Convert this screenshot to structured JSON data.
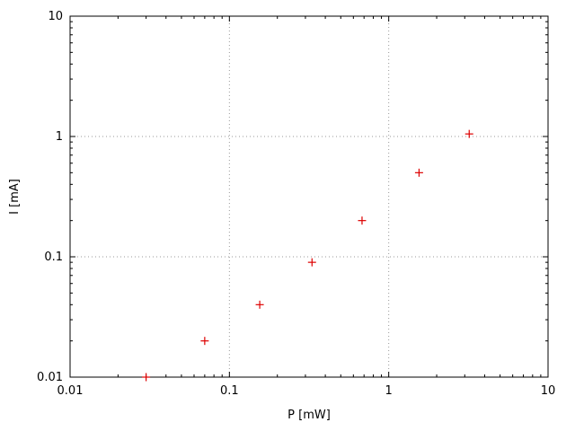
{
  "chart_data": {
    "type": "scatter",
    "title": "",
    "xlabel": "P [mW]",
    "ylabel": "I [mA]",
    "xscale": "log",
    "yscale": "log",
    "xlim": [
      0.01,
      10
    ],
    "ylim": [
      0.01,
      10
    ],
    "grid": true,
    "legend": "none",
    "marker": "plus",
    "x_ticks": [
      {
        "v": 0.01,
        "label": "0.01"
      },
      {
        "v": 0.1,
        "label": "0.1"
      },
      {
        "v": 1,
        "label": "1"
      },
      {
        "v": 10,
        "label": "10"
      }
    ],
    "y_ticks": [
      {
        "v": 0.01,
        "label": "0.01"
      },
      {
        "v": 0.1,
        "label": "0.1"
      },
      {
        "v": 1,
        "label": "1"
      },
      {
        "v": 10,
        "label": "10"
      }
    ],
    "minor_ticks": true,
    "points": [
      {
        "x": 0.03,
        "y": 0.01
      },
      {
        "x": 0.07,
        "y": 0.02
      },
      {
        "x": 0.155,
        "y": 0.04
      },
      {
        "x": 0.33,
        "y": 0.09
      },
      {
        "x": 0.68,
        "y": 0.2
      },
      {
        "x": 1.55,
        "y": 0.5
      },
      {
        "x": 3.2,
        "y": 1.05
      }
    ]
  },
  "colors": {
    "background": "#ffffff",
    "border": "#000000",
    "grid": "#9a9a9a",
    "marker": "#dd0000",
    "text": "#000000"
  }
}
